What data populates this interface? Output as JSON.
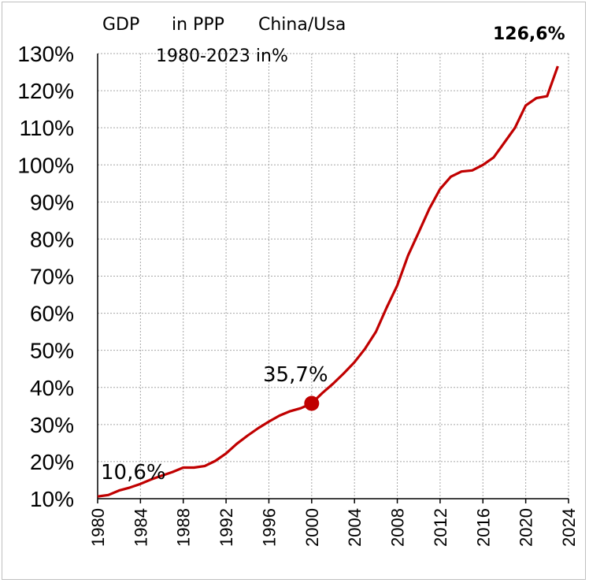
{
  "chart_data": {
    "type": "line",
    "title_parts": [
      "GDP",
      "in PPP",
      "China/Usa"
    ],
    "subtitle": "1980-2023 in%",
    "xlabel": "",
    "ylabel": "",
    "xlim": [
      1980,
      2024
    ],
    "ylim": [
      10,
      130
    ],
    "x_ticks": [
      "1980",
      "1984",
      "1988",
      "1992",
      "1996",
      "2000",
      "2004",
      "2008",
      "2012",
      "2016",
      "2020",
      "2024"
    ],
    "y_ticks": [
      "10%",
      "20%",
      "30%",
      "40%",
      "50%",
      "60%",
      "70%",
      "80%",
      "90%",
      "100%",
      "110%",
      "120%",
      "130%"
    ],
    "grid": true,
    "line_color": "#c00000",
    "series": [
      {
        "x": [
          1980,
          1981,
          1982,
          1983,
          1984,
          1985,
          1986,
          1987,
          1988,
          1989,
          1990,
          1991,
          1992,
          1993,
          1994,
          1995,
          1996,
          1997,
          1998,
          1999,
          2000,
          2001,
          2002,
          2003,
          2004,
          2005,
          2006,
          2007,
          2008,
          2009,
          2010,
          2011,
          2012,
          2013,
          2014,
          2015,
          2016,
          2017,
          2018,
          2019,
          2020,
          2021,
          2022,
          2023
        ],
        "y": [
          10.6,
          11.0,
          12.2,
          13.0,
          14.0,
          15.2,
          16.2,
          17.2,
          18.4,
          18.4,
          18.8,
          20.2,
          22.2,
          24.8,
          27.0,
          29.0,
          30.8,
          32.4,
          33.6,
          34.4,
          35.7,
          38.5,
          41.0,
          43.8,
          46.8,
          50.5,
          55.0,
          61.5,
          67.5,
          75.5,
          81.8,
          88.2,
          93.5,
          96.8,
          98.2,
          98.5,
          100.0,
          102.0,
          106.0,
          110.0,
          116.0,
          118.0,
          118.5,
          126.6
        ]
      }
    ],
    "annotations": [
      {
        "label": "10,6%",
        "x": 1980,
        "y": 10.6,
        "marker": false
      },
      {
        "label": "35,7%",
        "x": 2000,
        "y": 35.7,
        "marker": true
      },
      {
        "label": "126,6%",
        "x": 2023,
        "y": 126.6,
        "marker": false,
        "bold": true
      }
    ]
  }
}
